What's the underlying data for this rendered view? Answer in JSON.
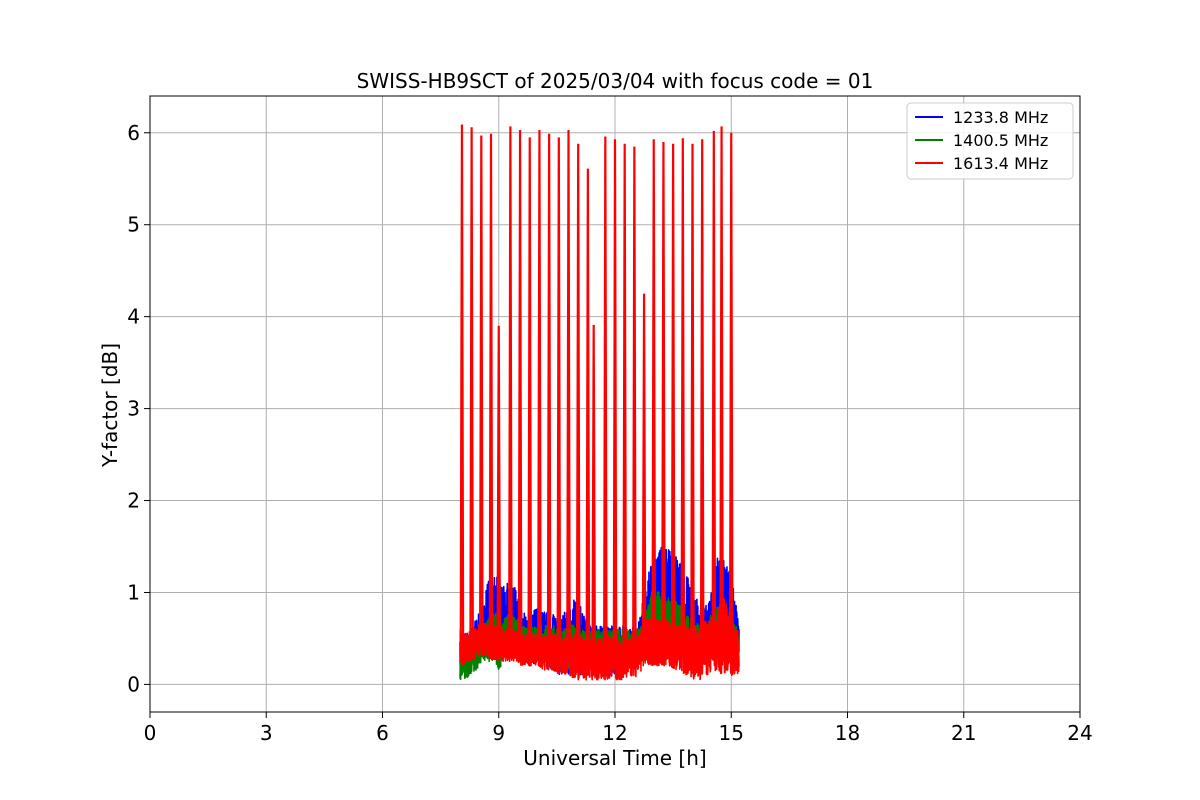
{
  "chart_data": {
    "type": "line",
    "title": "SWISS-HB9SCT of 2025/03/04 with focus code = 01",
    "xlabel": "Universal Time [h]",
    "ylabel": "Y-factor [dB]",
    "xlim": [
      0,
      24
    ],
    "ylim": [
      -0.3,
      6.4
    ],
    "xticks": [
      0,
      3,
      6,
      9,
      12,
      15,
      18,
      21,
      24
    ],
    "yticks": [
      0,
      1,
      2,
      3,
      4,
      5,
      6
    ],
    "grid": true,
    "legend_position": "top-right",
    "series": [
      {
        "name": "1233.8 MHz",
        "color": "#0000ff",
        "x": [
          8.0,
          8.1,
          8.3,
          8.5,
          8.7,
          8.9,
          9.0,
          9.1,
          9.3,
          9.4,
          9.6,
          9.8,
          10.0,
          10.2,
          10.4,
          10.6,
          10.8,
          11.0,
          11.2,
          11.4,
          11.6,
          11.8,
          12.0,
          12.2,
          12.4,
          12.6,
          12.8,
          13.0,
          13.2,
          13.4,
          13.6,
          13.8,
          14.0,
          14.2,
          14.4,
          14.6,
          14.8,
          15.0,
          15.2
        ],
        "band_low": [
          0.2,
          0.25,
          0.3,
          0.35,
          0.4,
          0.4,
          0.35,
          0.3,
          0.3,
          0.35,
          0.3,
          0.25,
          0.2,
          0.2,
          0.15,
          0.1,
          0.1,
          0.05,
          0.1,
          0.1,
          0.1,
          0.1,
          0.1,
          0.1,
          0.15,
          0.2,
          0.3,
          0.5,
          0.5,
          0.5,
          0.45,
          0.3,
          0.3,
          0.3,
          0.4,
          0.45,
          0.4,
          0.3,
          0.2
        ],
        "band_high": [
          0.6,
          0.55,
          0.6,
          0.8,
          1.1,
          1.25,
          1.1,
          1.05,
          1.25,
          1.1,
          0.8,
          0.75,
          0.85,
          0.8,
          0.8,
          0.75,
          0.85,
          0.95,
          0.8,
          0.65,
          0.65,
          0.65,
          0.65,
          0.65,
          0.6,
          0.65,
          1.1,
          1.45,
          1.5,
          1.5,
          1.4,
          1.3,
          1.0,
          0.9,
          0.85,
          1.4,
          1.35,
          1.2,
          0.65
        ]
      },
      {
        "name": "1400.5 MHz",
        "color": "#008000",
        "x": [
          8.0,
          8.1,
          8.3,
          8.5,
          8.7,
          8.9,
          9.0,
          9.1,
          9.3,
          9.4,
          9.6,
          9.8,
          10.0,
          10.2,
          10.4,
          10.6,
          10.8,
          11.0,
          11.2,
          11.4,
          11.6,
          11.8,
          12.0,
          12.2,
          12.4,
          12.6,
          12.8,
          13.0,
          13.2,
          13.4,
          13.6,
          13.8,
          14.0,
          14.2,
          14.4,
          14.6,
          14.8,
          15.0,
          15.2
        ],
        "band_low": [
          0.05,
          0.05,
          0.1,
          0.2,
          0.25,
          0.25,
          0.1,
          0.25,
          0.3,
          0.3,
          0.25,
          0.25,
          0.25,
          0.25,
          0.2,
          0.15,
          0.15,
          0.15,
          0.15,
          0.15,
          0.15,
          0.15,
          0.15,
          0.15,
          0.15,
          0.2,
          0.3,
          0.4,
          0.4,
          0.4,
          0.4,
          0.3,
          0.25,
          0.2,
          0.25,
          0.3,
          0.3,
          0.25,
          0.2
        ],
        "band_high": [
          0.45,
          0.4,
          0.45,
          0.55,
          0.7,
          0.8,
          0.75,
          0.7,
          0.8,
          0.75,
          0.65,
          0.6,
          0.65,
          0.65,
          0.65,
          0.6,
          0.65,
          0.65,
          0.6,
          0.6,
          0.6,
          0.6,
          0.6,
          0.6,
          0.6,
          0.6,
          0.8,
          1.1,
          1.0,
          0.95,
          0.9,
          0.8,
          0.7,
          0.65,
          0.7,
          0.85,
          0.85,
          0.8,
          0.55
        ]
      },
      {
        "name": "1613.4 MHz",
        "color": "#ff0000",
        "x": [
          8.0,
          8.1,
          8.3,
          8.5,
          8.7,
          8.9,
          9.0,
          9.1,
          9.3,
          9.4,
          9.6,
          9.8,
          10.0,
          10.2,
          10.4,
          10.6,
          10.8,
          11.0,
          11.2,
          11.4,
          11.6,
          11.8,
          12.0,
          12.2,
          12.4,
          12.6,
          12.8,
          13.0,
          13.2,
          13.4,
          13.6,
          13.8,
          14.0,
          14.2,
          14.4,
          14.6,
          14.8,
          15.0,
          15.2
        ],
        "band_low": [
          0.2,
          0.2,
          0.25,
          0.3,
          0.3,
          0.25,
          0.25,
          0.25,
          0.25,
          0.25,
          0.2,
          0.2,
          0.2,
          0.15,
          0.15,
          0.1,
          0.1,
          0.05,
          0.05,
          0.05,
          0.05,
          0.05,
          0.05,
          0.05,
          0.05,
          0.1,
          0.2,
          0.2,
          0.2,
          0.2,
          0.15,
          0.1,
          0.05,
          0.05,
          0.1,
          0.1,
          0.1,
          0.1,
          0.1
        ],
        "band_high": [
          0.6,
          0.55,
          0.6,
          0.65,
          0.7,
          0.65,
          0.65,
          0.6,
          0.6,
          0.6,
          0.55,
          0.55,
          0.55,
          0.55,
          0.55,
          0.5,
          0.55,
          0.55,
          0.5,
          0.5,
          0.5,
          0.55,
          0.5,
          0.5,
          0.5,
          0.55,
          0.7,
          0.75,
          0.7,
          0.7,
          0.65,
          0.65,
          0.6,
          0.65,
          0.7,
          0.8,
          0.95,
          0.8,
          0.55
        ],
        "spikes": [
          {
            "x": 8.05,
            "y": 6.09
          },
          {
            "x": 8.3,
            "y": 6.06
          },
          {
            "x": 8.55,
            "y": 5.97
          },
          {
            "x": 8.8,
            "y": 5.99
          },
          {
            "x": 9.0,
            "y": 3.9
          },
          {
            "x": 9.3,
            "y": 6.07
          },
          {
            "x": 9.55,
            "y": 6.03
          },
          {
            "x": 9.8,
            "y": 5.95
          },
          {
            "x": 10.05,
            "y": 6.03
          },
          {
            "x": 10.3,
            "y": 5.99
          },
          {
            "x": 10.55,
            "y": 5.95
          },
          {
            "x": 10.8,
            "y": 6.03
          },
          {
            "x": 11.05,
            "y": 5.88
          },
          {
            "x": 11.3,
            "y": 5.61
          },
          {
            "x": 11.45,
            "y": 3.91
          },
          {
            "x": 11.75,
            "y": 5.96
          },
          {
            "x": 12.0,
            "y": 5.93
          },
          {
            "x": 12.25,
            "y": 5.88
          },
          {
            "x": 12.5,
            "y": 5.85
          },
          {
            "x": 12.75,
            "y": 4.25
          },
          {
            "x": 13.0,
            "y": 5.93
          },
          {
            "x": 13.25,
            "y": 5.9
          },
          {
            "x": 13.5,
            "y": 5.88
          },
          {
            "x": 13.75,
            "y": 5.94
          },
          {
            "x": 14.0,
            "y": 5.88
          },
          {
            "x": 14.25,
            "y": 5.93
          },
          {
            "x": 14.55,
            "y": 6.02
          },
          {
            "x": 14.75,
            "y": 6.07
          },
          {
            "x": 15.0,
            "y": 6.0
          }
        ]
      }
    ]
  }
}
